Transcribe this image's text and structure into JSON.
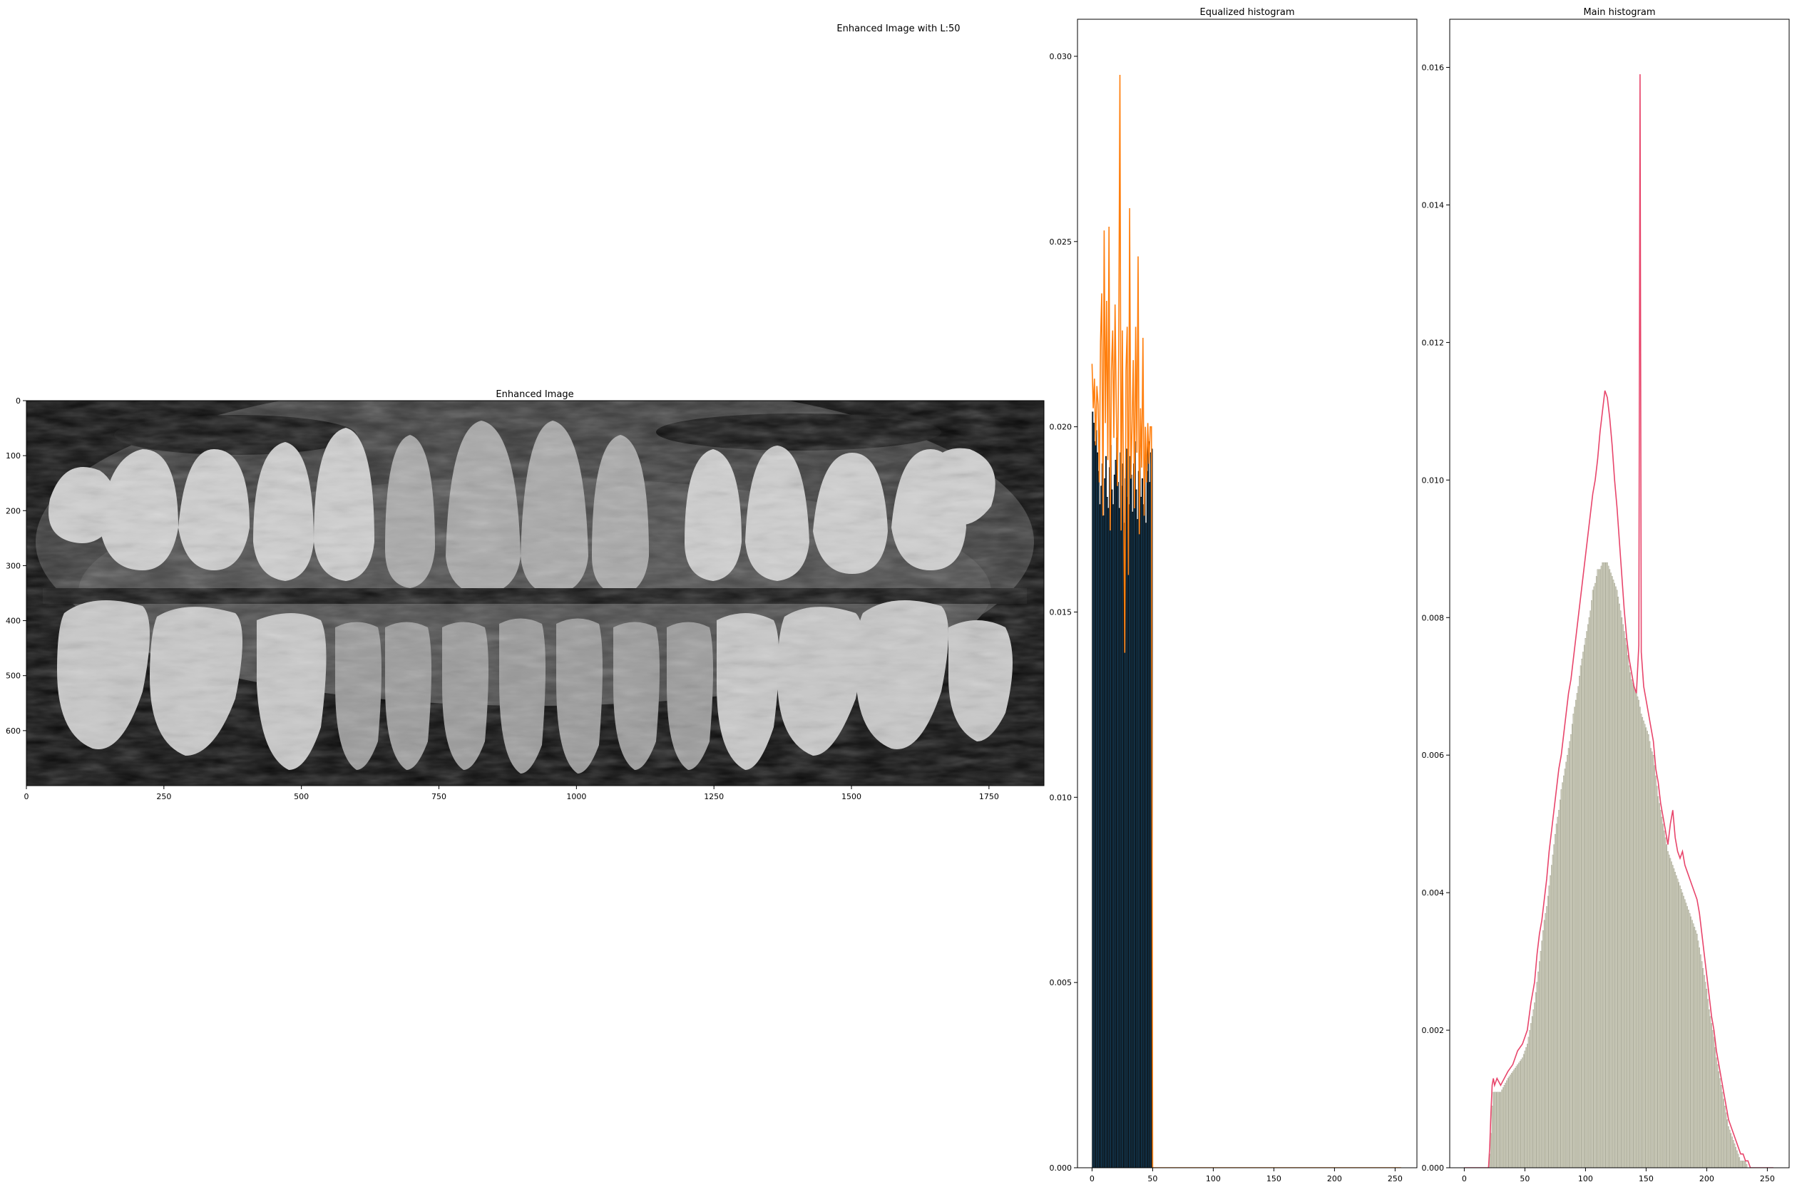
{
  "figure": {
    "suptitle": "Enhanced Image with L:50"
  },
  "colors": {
    "eq_bar": "#1f77b4",
    "eq_bar_edge": "#0b0b0b",
    "eq_line": "#ff7f0e",
    "main_bar": "#d8d8c4",
    "main_bar_edge": "#9a9a88",
    "main_line": "#e8456b",
    "axis": "#000000"
  },
  "chart_data": [
    {
      "id": "enhanced-image",
      "type": "image",
      "title": "Enhanced Image",
      "xlim": [
        0,
        1850
      ],
      "ylim": [
        700,
        0
      ],
      "xticks": [
        0,
        250,
        500,
        750,
        1000,
        1250,
        1500,
        1750
      ],
      "yticks": [
        0,
        100,
        200,
        300,
        400,
        500,
        600
      ],
      "content": "panoramic dental x-ray (grayscale)"
    },
    {
      "id": "equalized-histogram",
      "type": "bar",
      "title": "Equalized histogram",
      "xlim": [
        -12,
        268
      ],
      "ylim": [
        0,
        0.031
      ],
      "xticks": [
        0,
        50,
        100,
        150,
        200,
        250
      ],
      "yticks": [
        0.0,
        0.005,
        0.01,
        0.015,
        0.02,
        0.025,
        0.03
      ],
      "bins_x": [
        0,
        1,
        2,
        3,
        4,
        5,
        6,
        7,
        8,
        9,
        10,
        11,
        12,
        13,
        14,
        15,
        16,
        17,
        18,
        19,
        20,
        21,
        22,
        23,
        24,
        25,
        26,
        27,
        28,
        29,
        30,
        31,
        32,
        33,
        34,
        35,
        36,
        37,
        38,
        39,
        40,
        41,
        42,
        43,
        44,
        45,
        46,
        47,
        48,
        49
      ],
      "bar_values": [
        0.0204,
        0.0201,
        0.0196,
        0.0199,
        0.0193,
        0.0188,
        0.0179,
        0.0184,
        0.019,
        0.0176,
        0.0186,
        0.0192,
        0.0181,
        0.0178,
        0.0189,
        0.0195,
        0.0183,
        0.0179,
        0.0187,
        0.0191,
        0.0197,
        0.0185,
        0.0178,
        0.0193,
        0.0184,
        0.019,
        0.0174,
        0.0186,
        0.0194,
        0.0181,
        0.0179,
        0.0192,
        0.0187,
        0.0177,
        0.019,
        0.0196,
        0.0183,
        0.0175,
        0.0188,
        0.0193,
        0.0181,
        0.0186,
        0.0179,
        0.0191,
        0.0174,
        0.0188,
        0.0196,
        0.0185,
        0.0193,
        0.0194
      ],
      "line_x": [
        0,
        1,
        2,
        3,
        4,
        5,
        6,
        7,
        8,
        9,
        10,
        11,
        12,
        13,
        14,
        15,
        16,
        17,
        18,
        19,
        20,
        21,
        22,
        23,
        24,
        25,
        26,
        27,
        28,
        29,
        30,
        31,
        32,
        33,
        34,
        35,
        36,
        37,
        38,
        39,
        40,
        41,
        42,
        43,
        44,
        45,
        46,
        47,
        48,
        49,
        50,
        60,
        80,
        100,
        150,
        200,
        255
      ],
      "line_values": [
        0.0217,
        0.0205,
        0.0213,
        0.0195,
        0.0211,
        0.0206,
        0.0185,
        0.0223,
        0.0236,
        0.0176,
        0.0253,
        0.0201,
        0.0234,
        0.0191,
        0.0254,
        0.0172,
        0.0215,
        0.0226,
        0.0197,
        0.0233,
        0.0205,
        0.0184,
        0.022,
        0.0295,
        0.0172,
        0.0226,
        0.0183,
        0.0139,
        0.0215,
        0.0227,
        0.016,
        0.0259,
        0.0186,
        0.02,
        0.0218,
        0.0178,
        0.0227,
        0.0193,
        0.0246,
        0.0171,
        0.0205,
        0.0189,
        0.0224,
        0.0176,
        0.02,
        0.0185,
        0.0201,
        0.019,
        0.02,
        0.02,
        0.0,
        0.0,
        0.0,
        0.0,
        0.0,
        0.0,
        0.0
      ]
    },
    {
      "id": "main-histogram",
      "type": "bar",
      "title": "Main histogram",
      "xlim": [
        -12,
        268
      ],
      "ylim": [
        0,
        0.0167
      ],
      "xticks": [
        0,
        50,
        100,
        150,
        200,
        250
      ],
      "yticks": [
        0.0,
        0.002,
        0.004,
        0.006,
        0.008,
        0.01,
        0.012,
        0.014,
        0.016
      ],
      "x": [
        0,
        10,
        20,
        21,
        22,
        23,
        24,
        25,
        27,
        30,
        33,
        36,
        40,
        44,
        48,
        52,
        55,
        58,
        60,
        62,
        64,
        66,
        68,
        70,
        72,
        74,
        76,
        78,
        80,
        82,
        84,
        86,
        88,
        90,
        92,
        94,
        96,
        98,
        100,
        102,
        104,
        106,
        108,
        110,
        112,
        114,
        116,
        118,
        120,
        122,
        124,
        126,
        128,
        130,
        132,
        134,
        136,
        138,
        140,
        142,
        144,
        145,
        146,
        148,
        150,
        152,
        154,
        156,
        158,
        160,
        162,
        164,
        166,
        168,
        170,
        172,
        174,
        176,
        178,
        180,
        182,
        184,
        186,
        188,
        190,
        192,
        194,
        196,
        198,
        200,
        202,
        204,
        206,
        208,
        210,
        212,
        214,
        216,
        218,
        220,
        222,
        224,
        226,
        228,
        230,
        232,
        234,
        236,
        238,
        240,
        245,
        255
      ],
      "bar_values": [
        0,
        0,
        0,
        0.0002,
        0.0005,
        0.0009,
        0.0011,
        0.0011,
        0.0011,
        0.0011,
        0.0012,
        0.0013,
        0.0014,
        0.0015,
        0.0016,
        0.0018,
        0.0021,
        0.0024,
        0.0027,
        0.003,
        0.0033,
        0.0036,
        0.0038,
        0.0041,
        0.0044,
        0.0047,
        0.005,
        0.0052,
        0.0055,
        0.0057,
        0.0059,
        0.0061,
        0.0063,
        0.0066,
        0.0068,
        0.007,
        0.0073,
        0.0075,
        0.0077,
        0.0079,
        0.0081,
        0.0084,
        0.0085,
        0.0087,
        0.0087,
        0.0088,
        0.0088,
        0.0088,
        0.0087,
        0.0086,
        0.0085,
        0.0084,
        0.0082,
        0.008,
        0.0078,
        0.0076,
        0.0073,
        0.0071,
        0.007,
        0.0069,
        0.0068,
        0.0067,
        0.0066,
        0.0065,
        0.0064,
        0.0063,
        0.0061,
        0.006,
        0.0057,
        0.0054,
        0.0052,
        0.005,
        0.0048,
        0.0046,
        0.0045,
        0.0044,
        0.0043,
        0.0042,
        0.0041,
        0.004,
        0.0039,
        0.0038,
        0.0037,
        0.0036,
        0.0035,
        0.0034,
        0.0032,
        0.003,
        0.0028,
        0.0026,
        0.0023,
        0.0021,
        0.0019,
        0.0016,
        0.0014,
        0.0012,
        0.001,
        0.0008,
        0.0006,
        0.0005,
        0.0004,
        0.0003,
        0.0002,
        0.0001,
        0.0001,
        0.0001,
        0.0,
        0.0,
        0.0,
        0.0,
        0.0,
        0.0
      ],
      "line_values": [
        0,
        0,
        0,
        0.0003,
        0.0008,
        0.0012,
        0.0013,
        0.0012,
        0.0013,
        0.0012,
        0.0013,
        0.0014,
        0.0015,
        0.0017,
        0.0018,
        0.002,
        0.0024,
        0.0027,
        0.0031,
        0.0034,
        0.0036,
        0.0039,
        0.0042,
        0.0046,
        0.0049,
        0.0052,
        0.0055,
        0.0058,
        0.006,
        0.0063,
        0.0066,
        0.0069,
        0.0071,
        0.0074,
        0.0077,
        0.008,
        0.0083,
        0.0086,
        0.0089,
        0.0092,
        0.0095,
        0.0098,
        0.01,
        0.0103,
        0.0107,
        0.011,
        0.0113,
        0.0112,
        0.0109,
        0.0105,
        0.01,
        0.0096,
        0.0091,
        0.0086,
        0.0081,
        0.0077,
        0.0074,
        0.0072,
        0.007,
        0.0069,
        0.0076,
        0.0159,
        0.0075,
        0.007,
        0.0068,
        0.0066,
        0.0064,
        0.0062,
        0.0058,
        0.0056,
        0.0053,
        0.0051,
        0.0049,
        0.0047,
        0.005,
        0.0052,
        0.0048,
        0.0046,
        0.0045,
        0.0046,
        0.0044,
        0.0043,
        0.0042,
        0.0041,
        0.004,
        0.0039,
        0.0037,
        0.0034,
        0.0031,
        0.0028,
        0.0025,
        0.0022,
        0.002,
        0.0017,
        0.0015,
        0.0013,
        0.0011,
        0.0009,
        0.0007,
        0.0006,
        0.0005,
        0.0004,
        0.0003,
        0.0002,
        0.0002,
        0.0001,
        0.0001,
        0.0,
        0.0,
        0.0,
        0.0,
        0.0
      ]
    }
  ]
}
